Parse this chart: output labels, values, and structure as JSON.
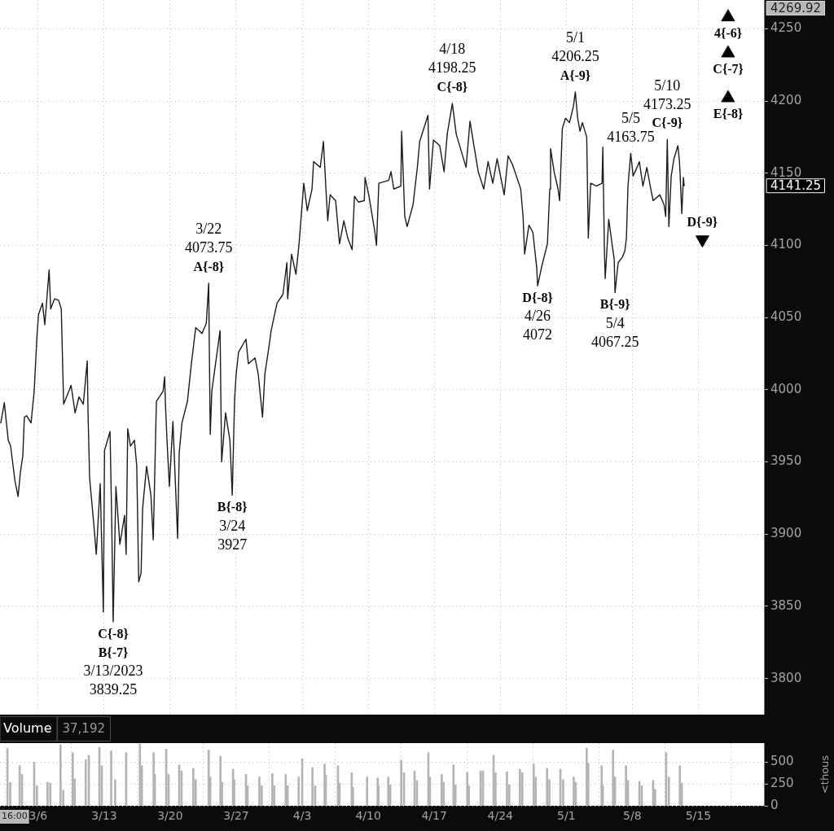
{
  "chart_data": [
    {
      "type": "line",
      "xlim": [
        "2023-03-01T23:00",
        "2023-05-21T23:00"
      ],
      "ylim": [
        3775,
        4269.92
      ],
      "xticks": [
        {
          "value": "2023-03-06",
          "label": null
        },
        {
          "value": "2023-03-13",
          "label": null
        },
        {
          "value": "2023-03-20",
          "label": null
        },
        {
          "value": "2023-03-27",
          "label": null
        },
        {
          "value": "2023-04-03",
          "label": null
        },
        {
          "value": "2023-04-10",
          "label": null
        },
        {
          "value": "2023-04-17",
          "label": null
        },
        {
          "value": "2023-04-24",
          "label": null
        },
        {
          "value": "2023-05-01",
          "label": null
        },
        {
          "value": "2023-05-08",
          "label": null
        },
        {
          "value": "2023-05-15",
          "label": null
        }
      ],
      "yticks": [
        3800,
        3850,
        3900,
        3950,
        4000,
        4050,
        4100,
        4150,
        4200,
        4250
      ],
      "tick_labels": "y",
      "grid": true,
      "series": [
        {
          "type": "line",
          "color": "#1c1c1c",
          "x": [
            "2023-03-02T01:00",
            "2023-03-02T10:00",
            "2023-03-02T20:00",
            "2023-03-03T02:00",
            "2023-03-03T13:00",
            "2023-03-03T21:00",
            "2023-03-04T03:00",
            "2023-03-04T09:00",
            "2023-03-04T13:00",
            "2023-03-04T19:00",
            "2023-03-05T06:00",
            "2023-03-05T14:00",
            "2023-03-05T21:00",
            "2023-03-06T01:00",
            "2023-03-06T11:00",
            "2023-03-06T17:00",
            "2023-03-07T04:00",
            "2023-03-07T08:00",
            "2023-03-07T18:00",
            "2023-03-08T04:00",
            "2023-03-08T11:00",
            "2023-03-08T15:00",
            "2023-03-08T17:00",
            "2023-03-09T12:00",
            "2023-03-09T22:00",
            "2023-03-10T08:00",
            "2023-03-10T19:00",
            "2023-03-11T05:00",
            "2023-03-11T07:00",
            "2023-03-11T11:00",
            "2023-03-11T21:00",
            "2023-03-12T04:00",
            "2023-03-12T14:00",
            "2023-03-12T22:00",
            "2023-03-13T01:00",
            "2023-03-13T15:00",
            "2023-03-13T19:00",
            "2023-03-13T23:00",
            "2023-03-14T06:00",
            "2023-03-14T16:00",
            "2023-03-15T04:00",
            "2023-03-15T08:00",
            "2023-03-15T12:00",
            "2023-03-15T19:00",
            "2023-03-16T05:00",
            "2023-03-16T11:00",
            "2023-03-16T16:00",
            "2023-03-16T22:00",
            "2023-03-17T02:00",
            "2023-03-17T12:00",
            "2023-03-17T23:00",
            "2023-03-18T05:00",
            "2023-03-18T13:00",
            "2023-03-19T06:00",
            "2023-03-19T10:00",
            "2023-03-19T12:00",
            "2023-03-19T16:00",
            "2023-03-19T22:00",
            "2023-03-20T07:00",
            "2023-03-20T19:00",
            "2023-03-20T23:00",
            "2023-03-21T06:00",
            "2023-03-21T20:00",
            "2023-03-22T06:00",
            "2023-03-22T17:00",
            "2023-03-23T09:00",
            "2023-03-23T20:00",
            "2023-03-24T02:00",
            "2023-03-24T04:00",
            "2023-03-24T06:00",
            "2023-03-24T10:00",
            "2023-03-25T07:00",
            "2023-03-25T11:00",
            "2023-03-25T21:00",
            "2023-03-26T08:00",
            "2023-03-26T14:00",
            "2023-03-26T20:00",
            "2023-03-27T00:00",
            "2023-03-27T06:00",
            "2023-03-28T01:00",
            "2023-03-28T07:00",
            "2023-03-29T00:00",
            "2023-03-29T08:00",
            "2023-03-29T19:00",
            "2023-03-30T01:00",
            "2023-03-30T11:00",
            "2023-03-30T17:00",
            "2023-03-31T08:00",
            "2023-03-31T23:00",
            "2023-04-01T09:00",
            "2023-04-01T11:00",
            "2023-04-01T21:00",
            "2023-04-02T08:00",
            "2023-04-02T16:00",
            "2023-04-02T22:00",
            "2023-04-03T04:00",
            "2023-04-03T13:00",
            "2023-04-04T01:00",
            "2023-04-04T05:00",
            "2023-04-04T22:00",
            "2023-04-05T06:00",
            "2023-04-05T12:00",
            "2023-04-05T17:00",
            "2023-04-05T23:00",
            "2023-04-06T13:00",
            "2023-04-06T23:00",
            "2023-04-07T10:00",
            "2023-04-07T20:00",
            "2023-04-08T07:00",
            "2023-04-08T13:00",
            "2023-04-08T23:00",
            "2023-04-09T14:00",
            "2023-04-09T16:00",
            "2023-04-10T02:00",
            "2023-04-10T17:00",
            "2023-04-10T21:00",
            "2023-04-11T03:00",
            "2023-04-12T04:00",
            "2023-04-12T10:00",
            "2023-04-12T17:00",
            "2023-04-13T11:00",
            "2023-04-13T13:00",
            "2023-04-13T21:00",
            "2023-04-14T03:00",
            "2023-04-14T18:00",
            "2023-04-15T05:00",
            "2023-04-15T11:00",
            "2023-04-16T08:00",
            "2023-04-16T12:00",
            "2023-04-16T22:00",
            "2023-04-17T14:00",
            "2023-04-18T01:00",
            "2023-04-18T09:00",
            "2023-04-18T22:00",
            "2023-04-19T08:00",
            "2023-04-20T09:00",
            "2023-04-20T19:00",
            "2023-04-21T05:00",
            "2023-04-21T16:00",
            "2023-04-22T06:00",
            "2023-04-22T17:00",
            "2023-04-23T05:00",
            "2023-04-23T16:00",
            "2023-04-24T10:00",
            "2023-04-24T20:00",
            "2023-04-25T07:00",
            "2023-04-25T17:00",
            "2023-04-26T04:00",
            "2023-04-26T10:00",
            "2023-04-26T14:00",
            "2023-04-27T01:00",
            "2023-04-27T11:00",
            "2023-04-27T21:00",
            "2023-04-27T23:00",
            "2023-04-28T10:00",
            "2023-04-29T00:00",
            "2023-04-29T06:00",
            "2023-04-29T08:00",
            "2023-04-29T17:00",
            "2023-04-30T03:00",
            "2023-04-30T07:00",
            "2023-04-30T14:00",
            "2023-04-30T22:00",
            "2023-05-01T08:00",
            "2023-05-01T18:00",
            "2023-05-01T23:00",
            "2023-05-02T05:00",
            "2023-05-02T11:00",
            "2023-05-02T17:00",
            "2023-05-03T04:00",
            "2023-05-03T08:00",
            "2023-05-03T14:00",
            "2023-05-04T05:00",
            "2023-05-04T19:00",
            "2023-05-04T21:00",
            "2023-05-05T01:00",
            "2023-05-05T03:00",
            "2023-05-05T12:00",
            "2023-05-06T02:00",
            "2023-05-06T04:00",
            "2023-05-06T12:00",
            "2023-05-06T23:00",
            "2023-05-07T05:00",
            "2023-05-07T09:00",
            "2023-05-07T13:00",
            "2023-05-07T20:00",
            "2023-05-08T02:00",
            "2023-05-08T12:00",
            "2023-05-08T18:00",
            "2023-05-09T03:00",
            "2023-05-09T13:00",
            "2023-05-09T23:00",
            "2023-05-10T05:00",
            "2023-05-10T22:00",
            "2023-05-11T09:00",
            "2023-05-11T13:00",
            "2023-05-11T17:00",
            "2023-05-11T21:00",
            "2023-05-12T03:00",
            "2023-05-12T10:00",
            "2023-05-12T20:00",
            "2023-05-13T00:00",
            "2023-05-13T02:00",
            "2023-05-13T06:00",
            "2023-05-13T10:00",
            "2023-05-13T12:00"
          ],
          "values": [
            3977,
            3991,
            3965,
            3961,
            3937,
            3926,
            3943,
            3954,
            3981,
            3982,
            3977,
            3999,
            4037,
            4052,
            4060,
            4045,
            4083,
            4056,
            4063,
            4062,
            4056,
            4011,
            3990,
            4003,
            3984,
            3995,
            3990,
            4020,
            3984,
            3939,
            3909,
            3886,
            3935,
            3846,
            3958,
            3971,
            3914,
            3839.25,
            3933,
            3893,
            3913,
            3886,
            3973,
            3961,
            3965,
            3947,
            3867,
            3873,
            3918,
            3947,
            3927,
            3896,
            3992,
            3999,
            4009,
            3990,
            3965,
            3933,
            3978,
            3897,
            3956,
            3977,
            3992,
            4018,
            4043,
            4039,
            4046,
            4073.75,
            4020,
            3969,
            3999,
            4041,
            3950,
            3984,
            3965,
            3927,
            3994,
            4011,
            4026,
            4035,
            4018,
            4022,
            4011,
            3981,
            4011,
            4029,
            4041,
            4060,
            4066,
            4088,
            4063,
            4094,
            4080,
            4101,
            4122,
            4143,
            4124,
            4139,
            4158,
            4154,
            4172,
            4141,
            4117,
            4135,
            4131,
            4101,
            4117,
            4105,
            4097,
            4134,
            4130,
            4131,
            4147,
            4134,
            4109,
            4100,
            4143,
            4145,
            4151,
            4139,
            4141,
            4179,
            4120,
            4113,
            4128,
            4154,
            4172,
            4190,
            4139,
            4173,
            4169,
            4151,
            4177,
            4198.25,
            4177,
            4154,
            4186,
            4169,
            4151,
            4139,
            4158,
            4143,
            4160,
            4135,
            4162,
            4156,
            4148,
            4139,
            4120,
            4094,
            4114,
            4109,
            4084,
            4072,
            4086,
            4101,
            4139,
            4167,
            4151,
            4139,
            4131,
            4181,
            4188,
            4185,
            4196,
            4206.25,
            4188,
            4179,
            4185,
            4175,
            4105,
            4143,
            4141,
            4143,
            4168,
            4097,
            4077,
            4118,
            4090,
            4067.25,
            4088,
            4092,
            4096,
            4105,
            4141,
            4163.75,
            4148,
            4154,
            4158,
            4141,
            4154,
            4139,
            4131,
            4135,
            4128,
            4120,
            4173.25,
            4113,
            4148,
            4160,
            4169,
            4158,
            4147,
            4122,
            4147,
            4141.25
          ]
        },
        {
          "type": "scatter",
          "color": "#000000",
          "marker": "triangle",
          "x": [
            "2023-05-18T04:00",
            "2023-05-18T04:00",
            "2023-05-18T04:00",
            "2023-05-15T10:00"
          ],
          "values": [
            4258,
            4233,
            4202,
            4104
          ]
        }
      ],
      "annotations": [
        {
          "text": "3/22\n4073.75",
          "x": "2023-03-24T02:00",
          "y": 4073.75
        },
        {
          "text": "A{-8}",
          "x": "2023-03-24T02:00",
          "y": 4073.75
        },
        {
          "text": "B{-8}",
          "x": "2023-03-26T14:00",
          "y": 3927
        },
        {
          "text": "3/24\n3927",
          "x": "2023-03-26T14:00",
          "y": 3927
        },
        {
          "text": "C{-8}\nB{-7}",
          "x": "2023-03-13T23:00",
          "y": 3839.25
        },
        {
          "text": "3/13/2023\n3839.25",
          "x": "2023-03-13T23:00",
          "y": 3839.25
        },
        {
          "text": "4/18\n4198.25",
          "x": "2023-04-18T22:00",
          "y": 4198.25
        },
        {
          "text": "C{-8}",
          "x": "2023-04-18T22:00",
          "y": 4198.25
        },
        {
          "text": "D{-8}",
          "x": "2023-04-27T23:00",
          "y": 4072
        },
        {
          "text": "4/26\n4072",
          "x": "2023-04-27T23:00",
          "y": 4072
        },
        {
          "text": "5/1\n4206.25",
          "x": "2023-05-01T23:00",
          "y": 4206.25
        },
        {
          "text": "A{-9}",
          "x": "2023-05-01T23:00",
          "y": 4206.25
        },
        {
          "text": "B{-9}",
          "x": "2023-05-06T04:00",
          "y": 4067.25
        },
        {
          "text": "5/4\n4067.25",
          "x": "2023-05-06T04:00",
          "y": 4067.25
        },
        {
          "text": "5/5\n4163.75",
          "x": "2023-05-07T20:00",
          "y": 4163.75
        },
        {
          "text": "5/10\n4173.25",
          "x": "2023-05-11T17:00",
          "y": 4173.25
        },
        {
          "text": "C{-9}",
          "x": "2023-05-11T17:00",
          "y": 4173.25
        },
        {
          "text": "4{-6}",
          "x": "2023-05-18T04:00",
          "y": 4258
        },
        {
          "text": "C{-7}",
          "x": "2023-05-18T04:00",
          "y": 4233
        },
        {
          "text": "E{-8}",
          "x": "2023-05-18T04:00",
          "y": 4202
        },
        {
          "text": "D{-9}",
          "x": "2023-05-15T10:00",
          "y": 4104
        },
        "4269.92",
        "4141.25"
      ]
    },
    {
      "type": "bar",
      "title": "Volume",
      "subtitle": "37,192",
      "ylabel": "<thous",
      "color": "#b4b4b4",
      "xlim": [
        "2023-03-01T23:00",
        "2023-05-21T23:00"
      ],
      "ylim": [
        0,
        720
      ],
      "xticks": [
        {
          "value": "2023-03-06",
          "label": "3/6"
        },
        {
          "value": "2023-03-13",
          "label": "3/13"
        },
        {
          "value": "2023-03-20",
          "label": "3/20"
        },
        {
          "value": "2023-03-27",
          "label": "3/27"
        },
        {
          "value": "2023-04-03",
          "label": "4/3"
        },
        {
          "value": "2023-04-10",
          "label": "4/10"
        },
        {
          "value": "2023-04-17",
          "label": "4/17"
        },
        {
          "value": "2023-04-24",
          "label": "4/24"
        },
        {
          "value": "2023-05-01",
          "label": "5/1"
        },
        {
          "value": "2023-05-08",
          "label": "5/8"
        },
        {
          "value": "2023-05-15",
          "label": "5/15"
        }
      ],
      "yticks": [
        0,
        250,
        500
      ],
      "grid": true,
      "x": [
        "2023-03-02T18:00",
        "2023-03-03T01:00",
        "2023-03-04T01:00",
        "2023-03-04T07:00",
        "2023-03-05T14:00",
        "2023-03-05T21:00",
        "2023-03-07T00:00",
        "2023-03-07T07:00",
        "2023-03-08T09:00",
        "2023-03-08T16:00",
        "2023-03-09T16:00",
        "2023-03-09T21:00",
        "2023-03-11T01:00",
        "2023-03-11T09:00",
        "2023-03-12T12:00",
        "2023-03-12T18:00",
        "2023-03-13T18:00",
        "2023-03-14T04:00",
        "2023-03-15T08:00",
        "2023-03-16T19:00",
        "2023-03-17T00:00",
        "2023-03-18T06:00",
        "2023-03-18T09:00",
        "2023-03-19T14:00",
        "2023-03-19T20:00",
        "2023-03-20T23:00",
        "2023-03-21T05:00",
        "2023-03-22T11:00",
        "2023-03-22T17:00",
        "2023-03-24T02:00",
        "2023-03-24T06:00",
        "2023-03-25T08:00",
        "2023-03-25T12:00",
        "2023-03-26T16:00",
        "2023-03-26T19:00",
        "2023-03-28T01:00",
        "2023-03-28T05:00",
        "2023-03-29T11:00",
        "2023-03-29T17:00",
        "2023-03-30T20:00",
        "2023-03-31T01:00",
        "2023-04-01T06:00",
        "2023-04-01T11:00",
        "2023-04-02T15:00",
        "2023-04-03T00:00",
        "2023-04-04T02:00",
        "2023-04-04T09:00",
        "2023-04-05T09:00",
        "2023-04-05T12:00",
        "2023-04-06T19:00",
        "2023-04-06T23:00",
        "2023-04-08T06:00",
        "2023-04-08T09:00",
        "2023-04-09T21:00",
        "2023-04-11T00:00",
        "2023-04-11T02:00",
        "2023-04-12T03:00",
        "2023-04-12T08:00",
        "2023-04-13T12:00",
        "2023-04-13T19:00",
        "2023-04-14T22:00",
        "2023-04-15T04:00",
        "2023-04-16T09:00",
        "2023-04-16T13:00",
        "2023-04-17T19:00",
        "2023-04-18T00:00",
        "2023-04-19T01:00",
        "2023-04-19T06:00",
        "2023-04-20T12:00",
        "2023-04-20T16:00",
        "2023-04-21T22:00",
        "2023-04-22T04:00",
        "2023-04-23T07:00",
        "2023-04-23T12:00",
        "2023-04-24T17:00",
        "2023-04-24T23:00",
        "2023-04-26T02:00",
        "2023-04-26T08:00",
        "2023-04-27T13:00",
        "2023-04-27T18:00",
        "2023-04-28T23:00",
        "2023-04-29T05:00",
        "2023-04-30T09:00",
        "2023-04-30T16:00",
        "2023-05-01T19:00",
        "2023-05-02T00:00",
        "2023-05-03T04:00",
        "2023-05-03T08:00",
        "2023-05-04T18:00",
        "2023-05-04T21:00",
        "2023-05-05T23:00",
        "2023-05-06T04:00",
        "2023-05-07T08:00",
        "2023-05-07T13:00",
        "2023-05-08T18:00",
        "2023-05-09T00:00",
        "2023-05-10T05:00",
        "2023-05-10T10:00",
        "2023-05-11T14:00",
        "2023-05-11T21:00",
        "2023-05-13T01:00",
        "2023-05-13T06:00"
      ],
      "values": [
        660,
        270,
        460,
        360,
        500,
        230,
        270,
        260,
        700,
        180,
        610,
        310,
        530,
        580,
        670,
        460,
        630,
        300,
        610,
        710,
        460,
        610,
        360,
        650,
        360,
        470,
        400,
        430,
        300,
        640,
        330,
        570,
        270,
        420,
        300,
        360,
        230,
        330,
        230,
        370,
        230,
        360,
        230,
        330,
        540,
        440,
        230,
        480,
        350,
        460,
        260,
        380,
        210,
        330,
        320,
        230,
        330,
        240,
        520,
        380,
        400,
        290,
        610,
        330,
        360,
        270,
        470,
        240,
        380,
        230,
        400,
        400,
        580,
        380,
        390,
        240,
        420,
        380,
        480,
        330,
        430,
        300,
        420,
        300,
        330,
        270,
        660,
        490,
        460,
        230,
        640,
        330,
        460,
        290,
        280,
        230,
        290,
        190,
        610,
        330,
        460,
        260
      ],
      "annotations": [
        "16:00"
      ]
    }
  ]
}
